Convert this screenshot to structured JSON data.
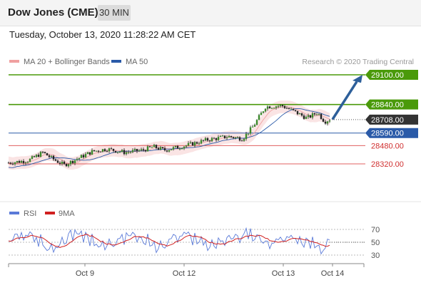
{
  "header": {
    "title": "Dow Jones (CME)",
    "timeframe": "30 MIN"
  },
  "datetime": "Tuesday, October 13, 2020 11:28:22 AM CET",
  "legend": {
    "ma20": "MA 20 + Bollinger Bands",
    "ma50": "MA 50",
    "credit": "Research © 2020 Trading Central"
  },
  "rsi_legend": {
    "rsi": "RSI",
    "ma9": "9MA"
  },
  "colors": {
    "green": "#4a9a0a",
    "blue": "#2a5aa8",
    "red": "#e06060",
    "dark": "#333333",
    "arrow": "#2d5f9a",
    "band": "#f8d8d8"
  },
  "chart_data": {
    "type": "candlestick",
    "ylim": [
      28160,
      29160
    ],
    "price_levels": [
      {
        "label": "29100.00",
        "value": 29100,
        "style": "resistance",
        "color": "#4a9a0a"
      },
      {
        "label": "28840.00",
        "value": 28840,
        "style": "resistance",
        "color": "#4a9a0a"
      },
      {
        "label": "28708.00",
        "value": 28708,
        "style": "current",
        "color": "#333333"
      },
      {
        "label": "28590.00",
        "value": 28590,
        "style": "pivot",
        "color": "#2a5aa8"
      },
      {
        "label": "28480.00",
        "value": 28480,
        "style": "support",
        "color": "#e06060"
      },
      {
        "label": "28320.00",
        "value": 28320,
        "style": "support",
        "color": "#e06060"
      }
    ],
    "x_ticks": [
      "Oct 9",
      "Oct 12",
      "Oct 13",
      "Oct 14"
    ],
    "rsi": {
      "ylim": [
        20,
        80
      ],
      "levels": [
        70,
        50,
        30
      ]
    }
  }
}
